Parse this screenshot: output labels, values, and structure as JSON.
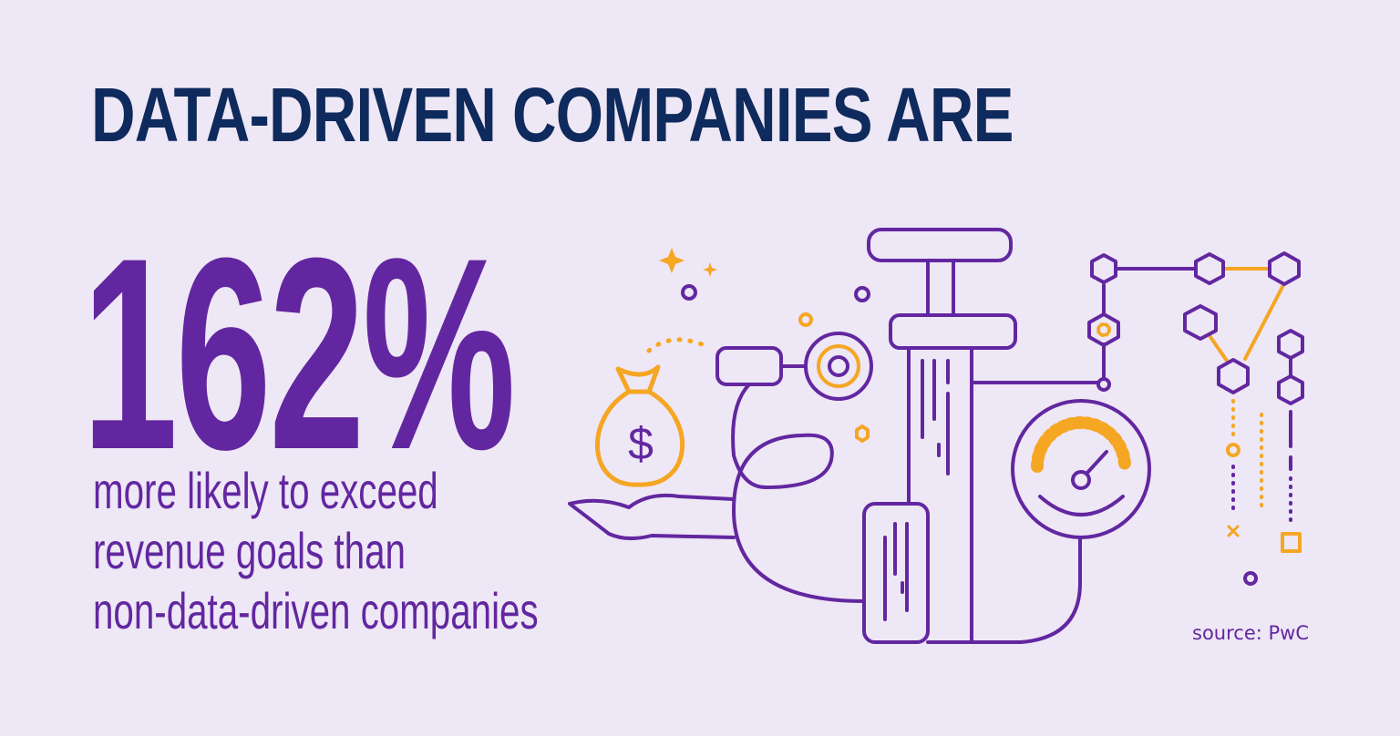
{
  "headline": "DATA-DRIVEN COMPANIES ARE",
  "stat": "162%",
  "description_lines": [
    "more likely to exceed",
    "revenue goals than",
    "non-data-driven companies"
  ],
  "source": "source: PwC",
  "colors": {
    "background": "#eee7f5",
    "navy": "#0f2a5c",
    "purple": "#6227a0",
    "orange": "#f5a623"
  },
  "money_bag_symbol": "$",
  "icons": [
    "money-bag-icon",
    "open-hand-icon",
    "sparkle-icon",
    "pump-machine-icon",
    "gauge-icon",
    "hexagon-network-icon"
  ]
}
